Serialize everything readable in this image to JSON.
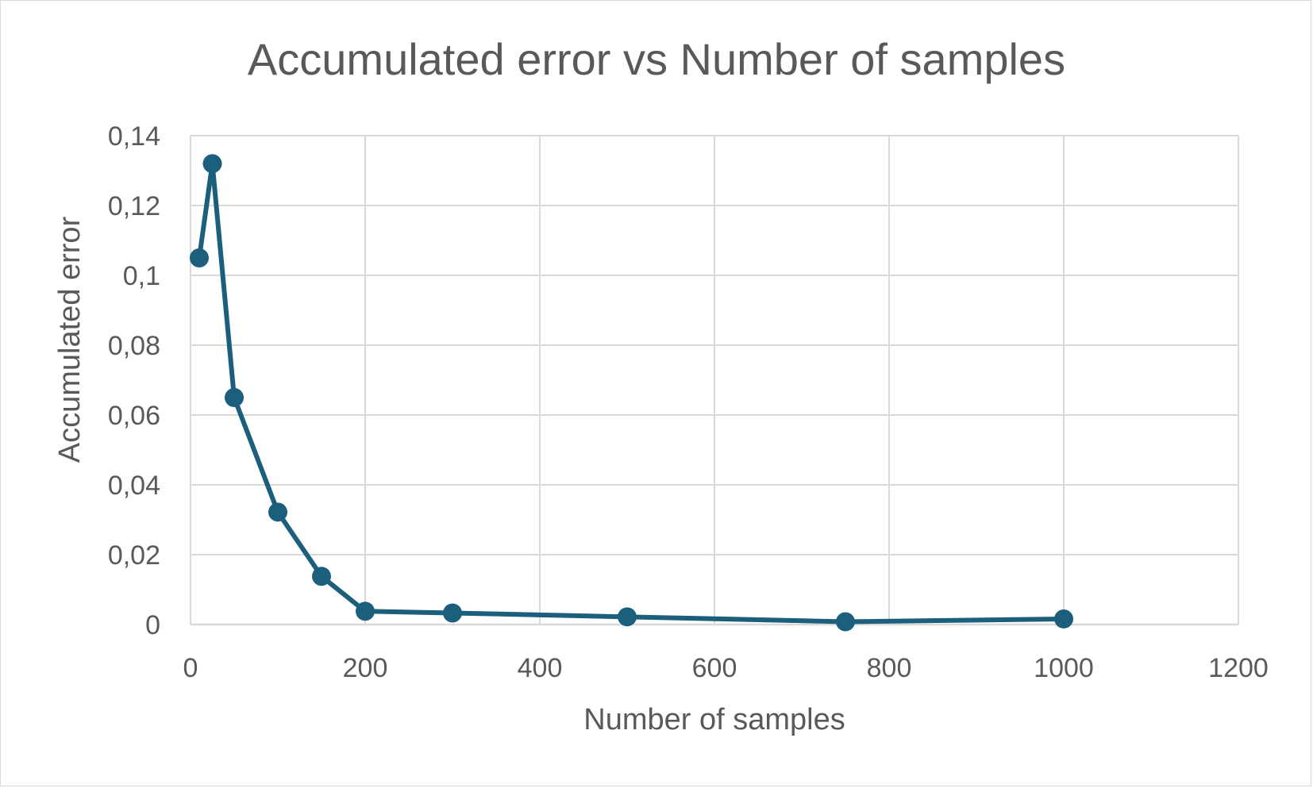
{
  "chart_data": {
    "type": "scatter",
    "title": "Accumulated error vs Number of samples",
    "xlabel": "Number of samples",
    "ylabel": "Accumulated error",
    "xlim": [
      0,
      1200
    ],
    "ylim": [
      0,
      0.14
    ],
    "x_ticks": [
      "0",
      "200",
      "400",
      "600",
      "800",
      "1000",
      "1200"
    ],
    "y_ticks": [
      "0",
      "0,02",
      "0,04",
      "0,06",
      "0,08",
      "0,1",
      "0,12",
      "0,14"
    ],
    "grid": true,
    "legend": "none",
    "series": [
      {
        "color": "#1b5f7d",
        "points": [
          {
            "x": 10,
            "y": 0.105
          },
          {
            "x": 25,
            "y": 0.132
          },
          {
            "x": 50,
            "y": 0.065
          },
          {
            "x": 100,
            "y": 0.0322
          },
          {
            "x": 150,
            "y": 0.0138
          },
          {
            "x": 200,
            "y": 0.0038
          },
          {
            "x": 300,
            "y": 0.0033
          },
          {
            "x": 500,
            "y": 0.0022
          },
          {
            "x": 750,
            "y": 0.0008
          },
          {
            "x": 1000,
            "y": 0.0016
          }
        ]
      }
    ]
  }
}
